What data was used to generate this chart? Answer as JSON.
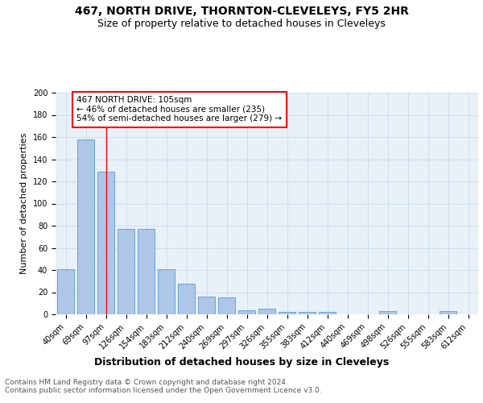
{
  "title": "467, NORTH DRIVE, THORNTON-CLEVELEYS, FY5 2HR",
  "subtitle": "Size of property relative to detached houses in Cleveleys",
  "xlabel": "Distribution of detached houses by size in Cleveleys",
  "ylabel": "Number of detached properties",
  "categories": [
    "40sqm",
    "69sqm",
    "97sqm",
    "126sqm",
    "154sqm",
    "183sqm",
    "212sqm",
    "240sqm",
    "269sqm",
    "297sqm",
    "326sqm",
    "355sqm",
    "383sqm",
    "412sqm",
    "440sqm",
    "469sqm",
    "498sqm",
    "526sqm",
    "555sqm",
    "583sqm",
    "612sqm"
  ],
  "values": [
    41,
    158,
    129,
    77,
    77,
    41,
    28,
    16,
    15,
    4,
    5,
    2,
    2,
    2,
    0,
    0,
    3,
    0,
    0,
    3,
    0
  ],
  "bar_color": "#aec6e8",
  "bar_edge_color": "#5a9bd5",
  "grid_color": "#c8d8e8",
  "background_color": "#e8f0f8",
  "vline_x": 2,
  "vline_color": "red",
  "annotation_text": "467 NORTH DRIVE: 105sqm\n← 46% of detached houses are smaller (235)\n54% of semi-detached houses are larger (279) →",
  "annotation_box_color": "white",
  "annotation_box_edge": "red",
  "ylim": [
    0,
    200
  ],
  "yticks": [
    0,
    20,
    40,
    60,
    80,
    100,
    120,
    140,
    160,
    180,
    200
  ],
  "footer_text": "Contains HM Land Registry data © Crown copyright and database right 2024.\nContains public sector information licensed under the Open Government Licence v3.0.",
  "title_fontsize": 10,
  "subtitle_fontsize": 9,
  "xlabel_fontsize": 9,
  "ylabel_fontsize": 8,
  "tick_fontsize": 7,
  "annotation_fontsize": 7.5,
  "footer_fontsize": 6.5
}
